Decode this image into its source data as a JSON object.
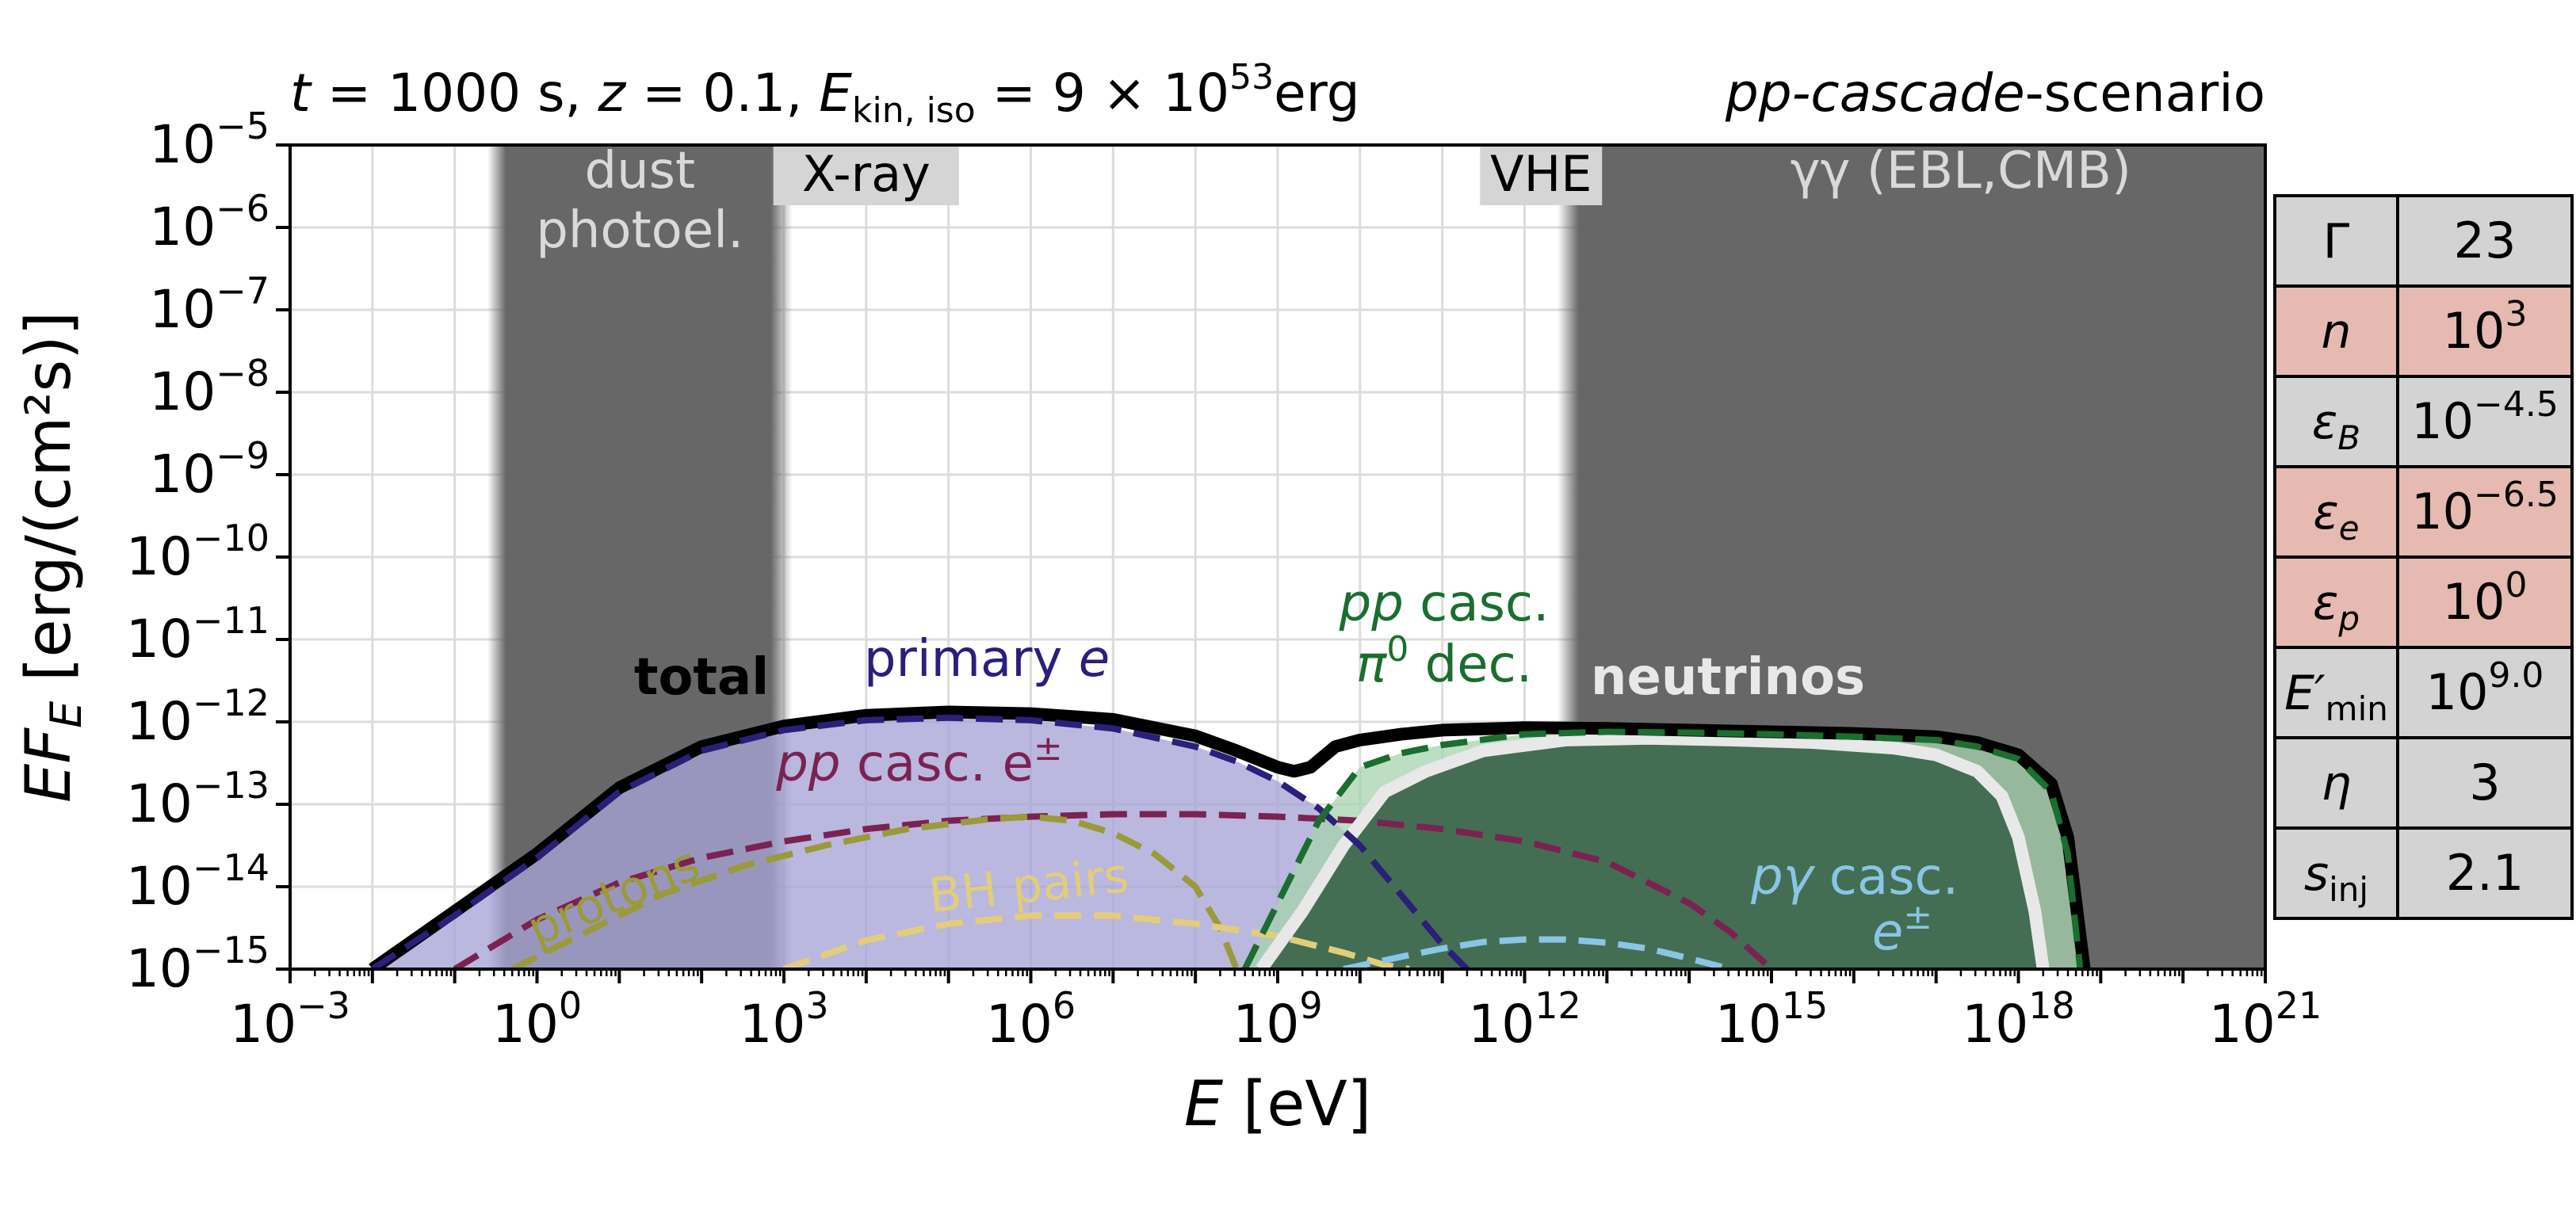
{
  "chart_data": {
    "type": "area",
    "title_left": {
      "t_label": "t",
      "t_value": " = 1000 s, ",
      "z_label": "z",
      "z_value": " = 0.1, ",
      "e_label": "E",
      "e_sub": "kin, iso",
      "e_value": " = 9 × 10",
      "e_exp": "53",
      "e_unit": "erg"
    },
    "title_right": {
      "italic": "pp-cascade",
      "rest": "-scenario"
    },
    "xlabel": {
      "var": "E",
      "unit": " [eV]"
    },
    "ylabel": {
      "var": "EF",
      "sub": "E",
      "unit": " [erg/(cm²s)]"
    },
    "x_scale": "log",
    "y_scale": "log",
    "xlim_log10": [
      -3,
      21
    ],
    "ylim_log10": [
      -15,
      -5
    ],
    "x_ticks": [
      {
        "exp": -3,
        "base": "10",
        "sup": "−3"
      },
      {
        "exp": 0,
        "base": "10",
        "sup": "0"
      },
      {
        "exp": 3,
        "base": "10",
        "sup": "3"
      },
      {
        "exp": 6,
        "base": "10",
        "sup": "6"
      },
      {
        "exp": 9,
        "base": "10",
        "sup": "9"
      },
      {
        "exp": 12,
        "base": "10",
        "sup": "12"
      },
      {
        "exp": 15,
        "base": "10",
        "sup": "15"
      },
      {
        "exp": 18,
        "base": "10",
        "sup": "18"
      },
      {
        "exp": 21,
        "base": "10",
        "sup": "21"
      }
    ],
    "y_ticks": [
      {
        "exp": -5,
        "base": "10",
        "sup": "−5"
      },
      {
        "exp": -6,
        "base": "10",
        "sup": "−6"
      },
      {
        "exp": -7,
        "base": "10",
        "sup": "−7"
      },
      {
        "exp": -8,
        "base": "10",
        "sup": "−8"
      },
      {
        "exp": -9,
        "base": "10",
        "sup": "−9"
      },
      {
        "exp": -10,
        "base": "10",
        "sup": "−10"
      },
      {
        "exp": -11,
        "base": "10",
        "sup": "−11"
      },
      {
        "exp": -12,
        "base": "10",
        "sup": "−12"
      },
      {
        "exp": -13,
        "base": "10",
        "sup": "−13"
      },
      {
        "exp": -14,
        "base": "10",
        "sup": "−14"
      },
      {
        "exp": -15,
        "base": "10",
        "sup": "−15"
      }
    ],
    "grid": true,
    "absorption_bands": [
      {
        "x_log10": [
          -0.6,
          3.1
        ],
        "label_lines": [
          "dust",
          "photoel."
        ]
      },
      {
        "x_log10": [
          12.4,
          21.0
        ],
        "label_lines": [
          "γγ (EBL,CMB)"
        ]
      }
    ],
    "band_tags": [
      {
        "text": "X-ray",
        "x_log10": 4.0
      },
      {
        "text": "VHE",
        "x_log10": 12.2
      }
    ],
    "series": [
      {
        "name": "total",
        "color": "#000000",
        "style": "solid-thick",
        "x_log10": [
          -2.0,
          -1.0,
          0.0,
          1.0,
          2.0,
          3.0,
          4.0,
          5.0,
          6.0,
          7.0,
          8.0,
          8.5,
          9.0,
          9.2,
          9.4,
          9.7,
          10.0,
          10.5,
          11.0,
          12.0,
          13.0,
          14.0,
          15.0,
          16.0,
          17.0,
          17.5,
          18.0,
          18.4,
          18.6,
          18.8
        ],
        "y_log10": [
          -15.0,
          -14.3,
          -13.6,
          -12.8,
          -12.3,
          -12.05,
          -11.92,
          -11.88,
          -11.9,
          -11.97,
          -12.17,
          -12.35,
          -12.55,
          -12.6,
          -12.55,
          -12.3,
          -12.22,
          -12.15,
          -12.1,
          -12.07,
          -12.08,
          -12.1,
          -12.12,
          -12.14,
          -12.18,
          -12.25,
          -12.4,
          -12.75,
          -13.4,
          -15.0
        ]
      },
      {
        "name": "primary e",
        "color": "#2a1f7a",
        "fill": "#a8a4d6",
        "style": "dashed",
        "x_log10": [
          -2.0,
          -1.0,
          0.0,
          1.0,
          2.0,
          3.0,
          4.0,
          5.0,
          6.0,
          7.0,
          8.0,
          8.5,
          9.0,
          9.5,
          10.0,
          10.5,
          11.0,
          11.3
        ],
        "y_log10": [
          -15.0,
          -14.35,
          -13.65,
          -12.85,
          -12.35,
          -12.1,
          -11.98,
          -11.95,
          -11.98,
          -12.08,
          -12.3,
          -12.48,
          -12.72,
          -13.05,
          -13.5,
          -14.1,
          -14.7,
          -15.0
        ]
      },
      {
        "name": "pp casc. π⁰ dec.",
        "color": "#1a6e30",
        "fill": "#a7d3ae",
        "style": "dashed",
        "x_log10": [
          8.6,
          9.0,
          9.5,
          10.0,
          10.5,
          11.0,
          12.0,
          13.0,
          14.0,
          15.0,
          16.0,
          17.0,
          17.5,
          18.0,
          18.4,
          18.6,
          18.75
        ],
        "y_log10": [
          -15.0,
          -14.2,
          -13.2,
          -12.55,
          -12.38,
          -12.28,
          -12.15,
          -12.12,
          -12.13,
          -12.15,
          -12.18,
          -12.22,
          -12.3,
          -12.45,
          -12.85,
          -13.6,
          -15.0
        ]
      },
      {
        "name": "neutrinos",
        "color": "#e8e8e8",
        "fill": "#436e53",
        "style": "solid-thick",
        "x_log10": [
          8.8,
          9.3,
          9.8,
          10.3,
          10.8,
          11.5,
          12.5,
          13.5,
          14.5,
          15.5,
          16.5,
          17.0,
          17.5,
          17.8,
          18.0,
          18.2,
          18.3
        ],
        "y_log10": [
          -15.0,
          -14.3,
          -13.5,
          -12.85,
          -12.6,
          -12.35,
          -12.22,
          -12.2,
          -12.22,
          -12.25,
          -12.32,
          -12.4,
          -12.6,
          -12.9,
          -13.4,
          -14.3,
          -15.0
        ]
      },
      {
        "name": "pp casc. e±",
        "color": "#7b2253",
        "style": "dashed",
        "x_log10": [
          -1.0,
          0.0,
          1.0,
          2.0,
          3.0,
          4.0,
          5.0,
          6.0,
          7.0,
          8.0,
          9.0,
          10.0,
          11.0,
          12.0,
          13.0,
          14.0,
          14.5,
          15.0
        ],
        "y_log10": [
          -15.0,
          -14.4,
          -13.95,
          -13.65,
          -13.45,
          -13.3,
          -13.2,
          -13.15,
          -13.12,
          -13.12,
          -13.15,
          -13.2,
          -13.3,
          -13.45,
          -13.7,
          -14.2,
          -14.55,
          -15.0
        ]
      },
      {
        "name": "protons",
        "color": "#9a9a3a",
        "style": "dashed",
        "x_log10": [
          -0.3,
          0.5,
          1.5,
          2.5,
          3.5,
          4.5,
          5.5,
          6.0,
          6.5,
          7.0,
          7.5,
          8.0,
          8.3,
          8.5
        ],
        "y_log10": [
          -15.0,
          -14.6,
          -14.1,
          -13.75,
          -13.5,
          -13.3,
          -13.18,
          -13.15,
          -13.2,
          -13.35,
          -13.6,
          -14.0,
          -14.5,
          -15.0
        ]
      },
      {
        "name": "BH pairs",
        "color": "#e2cd7a",
        "style": "dashed",
        "x_log10": [
          3.0,
          4.0,
          5.0,
          6.0,
          7.0,
          8.0,
          9.0,
          9.8,
          10.3,
          10.6
        ],
        "y_log10": [
          -15.0,
          -14.65,
          -14.45,
          -14.35,
          -14.35,
          -14.45,
          -14.6,
          -14.8,
          -14.95,
          -15.0
        ]
      },
      {
        "name": "pγ casc. e±",
        "color": "#8ac5e6",
        "style": "dashed",
        "x_log10": [
          9.8,
          10.5,
          11.0,
          11.5,
          12.0,
          12.5,
          13.0,
          13.5,
          14.0,
          14.5
        ],
        "y_log10": [
          -15.0,
          -14.85,
          -14.75,
          -14.67,
          -14.64,
          -14.64,
          -14.68,
          -14.75,
          -14.87,
          -15.0
        ]
      }
    ],
    "series_labels": [
      {
        "text": "total"
      },
      {
        "text_main": "primary ",
        "text_it": "e"
      },
      {
        "text_it": "pp",
        "text_main": " casc. e",
        "sup": "±"
      },
      {
        "text": "protons"
      },
      {
        "text": "BH pairs"
      },
      {
        "line1_it": "pp",
        "line1": " casc.",
        "line2_pi": "π",
        "line2_sup": "0",
        "line2": " dec."
      },
      {
        "text": "neutrinos"
      },
      {
        "line1_it": "pγ",
        "line1": " casc.",
        "line2": "e",
        "line2_sup": "±"
      }
    ],
    "parameters_table": [
      {
        "symbol": "Γ",
        "value_base": "23",
        "value_sup": "",
        "highlight": false
      },
      {
        "symbol": "n",
        "value_base": "10",
        "value_sup": "3",
        "highlight": true
      },
      {
        "symbol": "ε",
        "sub": "B",
        "value_base": "10",
        "value_sup": "−4.5",
        "highlight": false
      },
      {
        "symbol": "ε",
        "sub": "e",
        "value_base": "10",
        "value_sup": "−6.5",
        "highlight": true
      },
      {
        "symbol": "ε",
        "sub": "p",
        "value_base": "10",
        "value_sup": "0",
        "highlight": true
      },
      {
        "symbol": "E′",
        "sub": "min",
        "value_base": "10",
        "value_sup": "9.0",
        "highlight": false
      },
      {
        "symbol": "η",
        "value_base": "3",
        "value_sup": "",
        "highlight": false
      },
      {
        "symbol": "s",
        "sub": "inj",
        "value_base": "2.1",
        "value_sup": "",
        "highlight": false
      }
    ],
    "colors": {
      "band_fill": "#676767",
      "band_label": "#d9d9d9",
      "tag_bg": "#d5d5d5",
      "table_plain": "#d3d3d3",
      "table_highlight": "#e6bab1"
    }
  }
}
